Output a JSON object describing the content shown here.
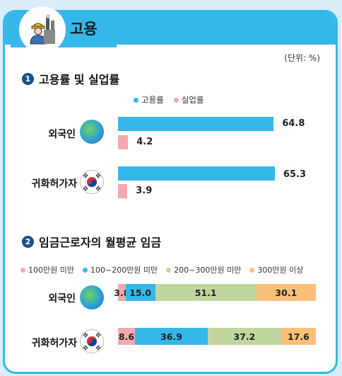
{
  "header": {
    "title": "고용",
    "icon": "worker-icon"
  },
  "unit_label": "(단위: %)",
  "colors": {
    "employment": "#35b7ea",
    "unemployment": "#f4a9ae",
    "w1": "#f4a9ae",
    "w2": "#35b7ea",
    "w3": "#c1d69e",
    "w4": "#f9c07a"
  },
  "section1": {
    "num": "1",
    "title": "고용률 및 실업률"
  },
  "section2": {
    "num": "2",
    "title": "임금근로자의 월평균 임금"
  },
  "chart_data": [
    {
      "type": "bar",
      "orientation": "horizontal",
      "title": "고용률 및 실업률",
      "categories": [
        "외국인",
        "귀화허가자"
      ],
      "series": [
        {
          "name": "고용률",
          "values": [
            64.8,
            65.3
          ]
        },
        {
          "name": "실업률",
          "values": [
            4.2,
            3.9
          ]
        }
      ]
    },
    {
      "type": "bar",
      "orientation": "horizontal",
      "stacked": true,
      "title": "임금근로자의 월평균 임금",
      "categories": [
        "외국인",
        "귀화허가자"
      ],
      "series": [
        {
          "name": "100만원 미만",
          "values": [
            3.8,
            8.6
          ]
        },
        {
          "name": "100~200만원 미만",
          "values": [
            15.0,
            36.9
          ]
        },
        {
          "name": "200~300만원 미만",
          "values": [
            51.1,
            37.2
          ]
        },
        {
          "name": "300만원 이상",
          "values": [
            30.1,
            17.6
          ]
        }
      ]
    }
  ]
}
